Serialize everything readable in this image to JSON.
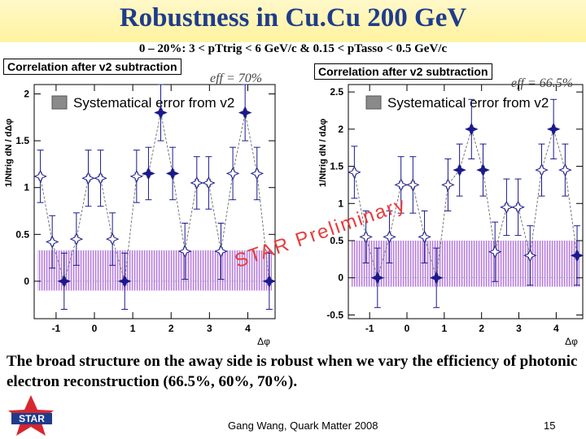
{
  "title": "Robustness in Cu.Cu 200 GeV",
  "subtitle": "0 – 20%: 3 < pTtrig < 6 GeV/c & 0.15 < pTasso < 0.5 GeV/c",
  "preliminary": "STAR Preliminary",
  "caption": "The broad structure on the away side is robust when we vary the efficiency of photonic electron reconstruction (66.5%, 60%, 70%).",
  "footer": "Gang Wang, Quark Matter 2008",
  "page_number": "15",
  "logo_text": "STAR",
  "colors": {
    "title": "#1f3c8c",
    "data": "#1a1a8c",
    "band": "#b07bd8",
    "sys": "#6a6a6a",
    "prelim": "#e83c3c"
  },
  "chart_data": [
    {
      "type": "scatter",
      "title": "Correlation after v2 subtraction",
      "annotation": "eff = 70%",
      "legend": "Systematical error from v2",
      "xlabel": "Δφ",
      "ylabel": "1/Ntrig dN / dΔφ",
      "xlim": [
        -1.571,
        4.712
      ],
      "ylim": [
        -0.4,
        2.1
      ],
      "xticks": [
        -1,
        0,
        1,
        2,
        3,
        4
      ],
      "yticks": [
        0,
        0.5,
        1,
        1.5,
        2
      ],
      "x": [
        -1.41,
        -1.1,
        -0.79,
        -0.47,
        -0.16,
        0.16,
        0.47,
        0.79,
        1.1,
        1.41,
        1.73,
        2.04,
        2.36,
        2.67,
        2.98,
        3.3,
        3.61,
        3.93,
        4.24,
        4.56
      ],
      "y": [
        1.12,
        0.42,
        0.0,
        0.45,
        1.1,
        1.1,
        0.45,
        0.0,
        1.12,
        1.15,
        1.8,
        1.15,
        0.32,
        1.05,
        1.05,
        0.32,
        1.15,
        1.8,
        1.15,
        0.0
      ],
      "yerr": [
        0.28,
        0.28,
        0.3,
        0.28,
        0.3,
        0.3,
        0.28,
        0.3,
        0.28,
        0.28,
        0.3,
        0.28,
        0.3,
        0.28,
        0.28,
        0.3,
        0.28,
        0.3,
        0.28,
        0.3
      ],
      "sys_width": [
        0.05,
        0.05,
        0.05,
        0.05,
        0.06,
        0.06,
        0.05,
        0.05,
        0.05,
        0.05,
        0.05,
        0.05,
        0.05,
        0.06,
        0.06,
        0.05,
        0.05,
        0.05,
        0.05,
        0.05
      ],
      "v2_band": [
        -0.1,
        0.33
      ]
    },
    {
      "type": "scatter",
      "title": "Correlation after v2 subtraction",
      "annotation": "eff = 66.5%",
      "legend": "Systematical error from v2",
      "xlabel": "Δφ",
      "ylabel": "1/Ntrig dN / dΔφ",
      "xlim": [
        -1.571,
        4.712
      ],
      "ylim": [
        -0.55,
        2.6
      ],
      "xticks": [
        -1,
        0,
        1,
        2,
        3,
        4
      ],
      "yticks": [
        -0.5,
        0,
        0.5,
        1,
        1.5,
        2,
        2.5
      ],
      "x": [
        -1.41,
        -1.1,
        -0.79,
        -0.47,
        -0.16,
        0.16,
        0.47,
        0.79,
        1.1,
        1.41,
        1.73,
        2.04,
        2.36,
        2.67,
        2.98,
        3.3,
        3.61,
        3.93,
        4.24,
        4.56
      ],
      "y": [
        1.42,
        0.55,
        0.0,
        0.55,
        1.25,
        1.25,
        0.55,
        0.0,
        1.25,
        1.45,
        2.0,
        1.45,
        0.35,
        0.95,
        0.95,
        0.3,
        1.45,
        2.0,
        1.45,
        0.3
      ],
      "yerr": [
        0.35,
        0.35,
        0.4,
        0.35,
        0.38,
        0.38,
        0.35,
        0.4,
        0.35,
        0.35,
        0.4,
        0.35,
        0.4,
        0.38,
        0.38,
        0.4,
        0.35,
        0.4,
        0.35,
        0.4
      ],
      "sys_width": [
        0.05,
        0.05,
        0.05,
        0.05,
        0.06,
        0.06,
        0.05,
        0.05,
        0.05,
        0.05,
        0.05,
        0.05,
        0.05,
        0.06,
        0.06,
        0.05,
        0.05,
        0.05,
        0.05,
        0.05
      ],
      "v2_band": [
        -0.12,
        0.5
      ]
    }
  ]
}
